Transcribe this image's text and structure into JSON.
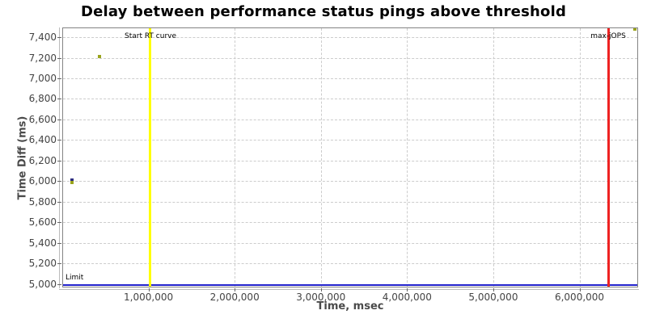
{
  "chart": {
    "title": "Delay between performance status pings above threshold",
    "xlabel": "Time, msec",
    "ylabel": "Time Diff (ms)"
  },
  "chart_data": {
    "type": "scatter",
    "title": "Delay between performance status pings above threshold",
    "xlabel": "Time, msec",
    "ylabel": "Time Diff (ms)",
    "xlim": [
      0,
      6680000
    ],
    "ylim": [
      4965,
      7495
    ],
    "grid": true,
    "legend": "none",
    "x_ticks": [
      {
        "value": 1000000,
        "label": "1,000,000"
      },
      {
        "value": 2000000,
        "label": "2,000,000"
      },
      {
        "value": 3000000,
        "label": "3,000,000"
      },
      {
        "value": 4000000,
        "label": "4,000,000"
      },
      {
        "value": 5000000,
        "label": "5,000,000"
      },
      {
        "value": 6000000,
        "label": "6,000,000"
      }
    ],
    "y_ticks": [
      {
        "value": 5000,
        "label": "5,000"
      },
      {
        "value": 5200,
        "label": "5,200"
      },
      {
        "value": 5400,
        "label": "5,400"
      },
      {
        "value": 5600,
        "label": "5,600"
      },
      {
        "value": 5800,
        "label": "5,800"
      },
      {
        "value": 6000,
        "label": "6,000"
      },
      {
        "value": 6200,
        "label": "6,200"
      },
      {
        "value": 6400,
        "label": "6,400"
      },
      {
        "value": 6600,
        "label": "6,600"
      },
      {
        "value": 6800,
        "label": "6,800"
      },
      {
        "value": 7000,
        "label": "7,000"
      },
      {
        "value": 7200,
        "label": "7,200"
      },
      {
        "value": 7400,
        "label": "7,400"
      }
    ],
    "series": [
      {
        "name": "points-navy",
        "marker": "square",
        "color": "#2d2d80",
        "points": [
          [
            100000,
            6015
          ]
        ]
      },
      {
        "name": "points-olive",
        "marker": "square",
        "color": "#9aa41c",
        "points": [
          [
            100000,
            5995
          ],
          [
            420000,
            7220
          ],
          [
            6630000,
            7490
          ]
        ]
      }
    ],
    "annotations": {
      "vlines": [
        {
          "x": 1010000,
          "color": "#ffff00",
          "width": 3,
          "label": "Start RT curve"
        },
        {
          "x": 6325000,
          "color": "#ee2222",
          "width": 3,
          "label": "max-jOPS"
        }
      ],
      "hlines": [
        {
          "y": 5000,
          "color": "#2222cc",
          "width": 2,
          "label": "Limit"
        }
      ]
    },
    "colors": {
      "grid": "#cccccc",
      "plot_border": "#848484",
      "tick": "#666666",
      "tick_text": "#444444",
      "axis_label_text": "#4a4a4a",
      "title_text": "#000000",
      "background": "#ffffff"
    }
  }
}
